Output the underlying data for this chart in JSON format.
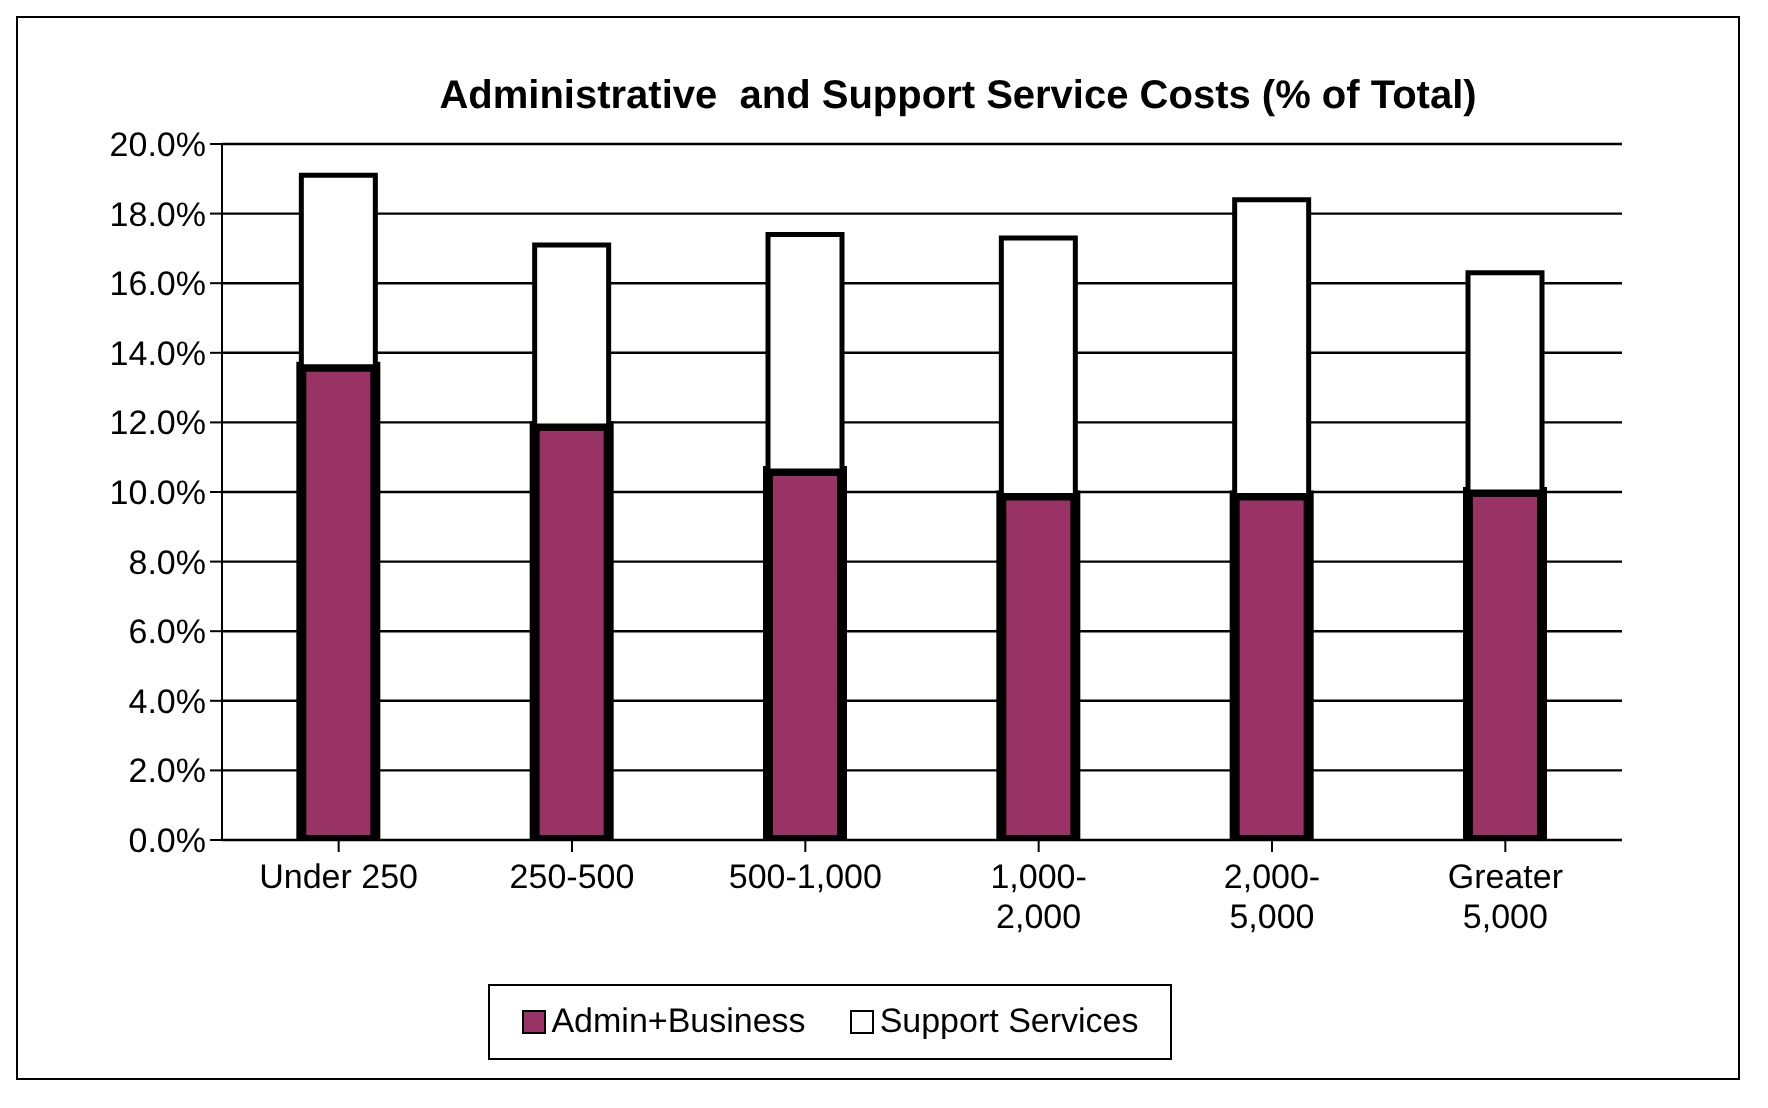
{
  "chart_data": {
    "type": "bar",
    "title": "Administrative  and Support Service Costs (% of Total)",
    "categories": [
      "Under 250",
      "250-500",
      "500-1,000",
      "1,000-2,000",
      "2,000-5,000",
      "Greater 5,000"
    ],
    "stacked": true,
    "series": [
      {
        "name": "Admin+Business",
        "color": "#993366",
        "values": [
          13.6,
          11.9,
          10.6,
          9.9,
          9.9,
          10.0
        ]
      },
      {
        "name": "Support Services",
        "color": "#ffffff",
        "values": [
          5.5,
          5.2,
          6.8,
          7.4,
          8.5,
          6.3
        ]
      }
    ],
    "ylim": [
      0,
      20
    ],
    "yticks": [
      {
        "value": 0,
        "label": "0.0%"
      },
      {
        "value": 2,
        "label": "2.0%"
      },
      {
        "value": 4,
        "label": "4.0%"
      },
      {
        "value": 6,
        "label": "6.0%"
      },
      {
        "value": 8,
        "label": "8.0%"
      },
      {
        "value": 10,
        "label": "10.0%"
      },
      {
        "value": 12,
        "label": "12.0%"
      },
      {
        "value": 14,
        "label": "14.0%"
      },
      {
        "value": 16,
        "label": "16.0%"
      },
      {
        "value": 18,
        "label": "18.0%"
      },
      {
        "value": 20,
        "label": "20.0%"
      }
    ],
    "grid": "y",
    "legend": "bottom"
  }
}
